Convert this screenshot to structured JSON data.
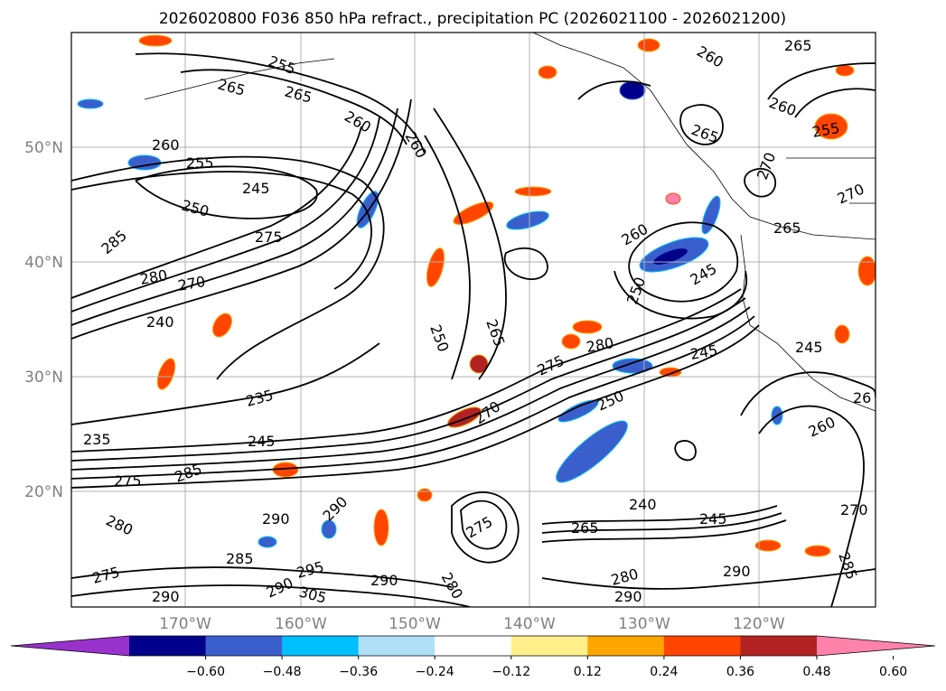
{
  "title": "2026020800 F036 850 hPa refract., precipitation PC (2026021100 - 2026021200)",
  "map": {
    "lat_labels": [
      "50°N",
      "40°N",
      "30°N",
      "20°N"
    ],
    "lon_labels": [
      "170°W",
      "160°W",
      "150°W",
      "140°W",
      "130°W",
      "120°W"
    ],
    "contour_labels": [
      "255",
      "265",
      "265",
      "260",
      "260",
      "260",
      "255",
      "245",
      "250",
      "275",
      "285",
      "280",
      "270",
      "240",
      "235",
      "235",
      "245",
      "275",
      "285",
      "280",
      "290",
      "290",
      "285",
      "275",
      "290",
      "295",
      "290",
      "305",
      "290",
      "280",
      "250",
      "265",
      "275",
      "270",
      "280",
      "250",
      "245",
      "260",
      "250",
      "245",
      "265",
      "270",
      "260",
      "265",
      "260",
      "255",
      "265",
      "270",
      "245",
      "26",
      "260",
      "240",
      "265",
      "245",
      "270",
      "285",
      "290",
      "280",
      "290",
      "275"
    ]
  },
  "colorbar": {
    "ticks": [
      "−0.60",
      "−0.48",
      "−0.36",
      "−0.24",
      "−0.12",
      "0.12",
      "0.24",
      "0.36",
      "0.48",
      "0.60"
    ],
    "colors": [
      "#9932cc",
      "#00008b",
      "#3a5fcd",
      "#00bfff",
      "#b0e0f8",
      "#ffffff",
      "#fff08c",
      "#ffa500",
      "#ff4500",
      "#b22222",
      "#ff82ab"
    ]
  }
}
